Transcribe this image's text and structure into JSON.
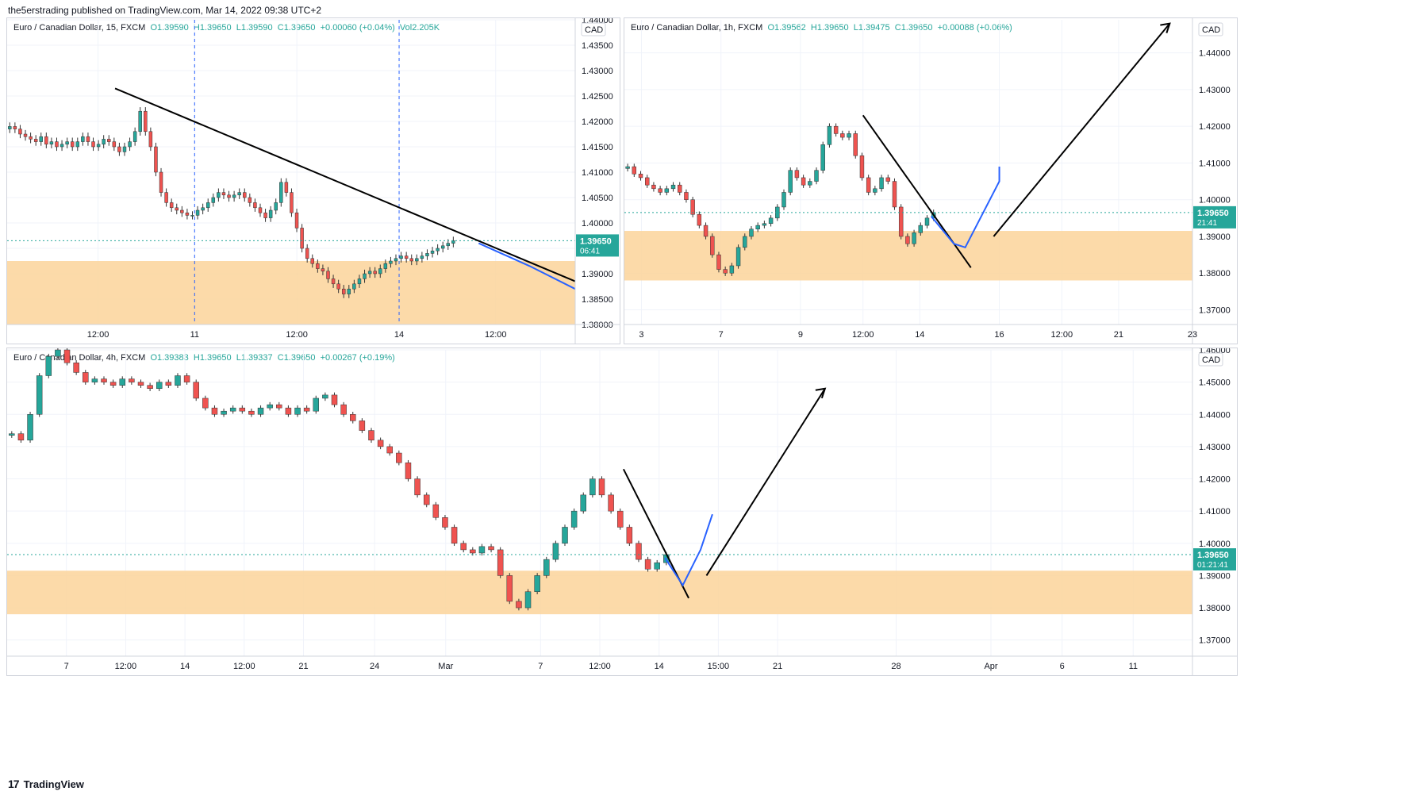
{
  "header": {
    "publisher": "the5erstrading published on TradingView.com, Mar 14, 2022 09:38 UTC+2"
  },
  "footer": {
    "brand": "TradingView",
    "logo_icon": "tradingview-logo-icon"
  },
  "colors": {
    "up": "#26a69a",
    "down": "#ef5350",
    "zone": "#fbd39a",
    "price_badge": "#26a69a",
    "trend": "#000000",
    "path": "#2962ff",
    "grid": "#f0f3fa"
  },
  "chart_data": [
    {
      "id": "p15",
      "type": "candlestick",
      "legend": {
        "symbol": "Euro / Canadian Dollar, 15, FXCM",
        "o": "O1.39590",
        "h": "H1.39650",
        "l": "L1.39590",
        "c": "C1.39650",
        "chg": "+0.00060 (+0.04%)",
        "vol": "Vol2.205K"
      },
      "currency": "CAD",
      "ylim": [
        1.38,
        1.44
      ],
      "y_ticks": [
        "1.38000",
        "1.38500",
        "1.39000",
        "1.39500",
        "1.40000",
        "1.40500",
        "1.41000",
        "1.41500",
        "1.42000",
        "1.42500",
        "1.43000",
        "1.43500",
        "1.44000"
      ],
      "x_ticks": [
        "12:00",
        "11",
        "12:00",
        "14",
        "12:00"
      ],
      "x_tick_pos": [
        0.16,
        0.33,
        0.51,
        0.69,
        0.86
      ],
      "price": "1.39650",
      "countdown": "06:41",
      "zone": [
        1.38,
        1.3925
      ],
      "vlines": [
        0.33,
        0.69
      ],
      "closes": [
        1.419,
        1.4185,
        1.4175,
        1.417,
        1.4165,
        1.416,
        1.417,
        1.4155,
        1.416,
        1.415,
        1.4155,
        1.416,
        1.415,
        1.416,
        1.417,
        1.416,
        1.415,
        1.4155,
        1.4165,
        1.416,
        1.415,
        1.414,
        1.415,
        1.416,
        1.418,
        1.422,
        1.418,
        1.415,
        1.41,
        1.406,
        1.404,
        1.403,
        1.4025,
        1.402,
        1.4015,
        1.4015,
        1.4025,
        1.403,
        1.404,
        1.405,
        1.406,
        1.4055,
        1.405,
        1.4055,
        1.406,
        1.405,
        1.404,
        1.403,
        1.402,
        1.401,
        1.4025,
        1.404,
        1.408,
        1.406,
        1.402,
        1.399,
        1.395,
        1.393,
        1.392,
        1.391,
        1.3905,
        1.389,
        1.388,
        1.387,
        1.386,
        1.387,
        1.388,
        1.389,
        1.39,
        1.3905,
        1.39,
        1.391,
        1.392,
        1.3925,
        1.393,
        1.3935,
        1.393,
        1.3925,
        1.393,
        1.3935,
        1.394,
        1.3945,
        1.395,
        1.3955,
        1.396,
        1.3965
      ],
      "lines": [
        {
          "color": "trend",
          "pts": [
            [
              0.19,
              1.4265
            ],
            [
              1.0,
              1.3885
            ]
          ]
        },
        {
          "color": "path",
          "pts": [
            [
              0.83,
              1.396
            ],
            [
              0.92,
              1.3915
            ],
            [
              1.0,
              1.387
            ]
          ]
        }
      ]
    },
    {
      "id": "p1h",
      "type": "candlestick",
      "legend": {
        "symbol": "Euro / Canadian Dollar, 1h, FXCM",
        "o": "O1.39562",
        "h": "H1.39650",
        "l": "L1.39475",
        "c": "C1.39650",
        "chg": "+0.00088 (+0.06%)",
        "vol": ""
      },
      "currency": "CAD",
      "ylim": [
        1.366,
        1.449
      ],
      "y_ticks": [
        "1.37000",
        "1.38000",
        "1.39000",
        "1.40000",
        "1.41000",
        "1.42000",
        "1.43000",
        "1.44000"
      ],
      "x_ticks": [
        "3",
        "7",
        "9",
        "12:00",
        "14",
        "16",
        "12:00",
        "21",
        "23"
      ],
      "x_tick_pos": [
        0.03,
        0.17,
        0.31,
        0.42,
        0.52,
        0.66,
        0.77,
        0.87,
        1.0
      ],
      "price": "1.39650",
      "countdown": "21:41",
      "zone": [
        1.378,
        1.3915
      ],
      "vlines": [],
      "closes": [
        1.409,
        1.407,
        1.406,
        1.404,
        1.403,
        1.402,
        1.403,
        1.404,
        1.402,
        1.4,
        1.396,
        1.393,
        1.39,
        1.385,
        1.381,
        1.38,
        1.382,
        1.387,
        1.39,
        1.392,
        1.393,
        1.3935,
        1.395,
        1.398,
        1.402,
        1.408,
        1.406,
        1.404,
        1.405,
        1.408,
        1.415,
        1.42,
        1.418,
        1.417,
        1.418,
        1.412,
        1.406,
        1.402,
        1.403,
        1.406,
        1.405,
        1.398,
        1.39,
        1.388,
        1.391,
        1.393,
        1.395,
        1.3965
      ],
      "closes_span": [
        0.0,
        0.55
      ],
      "lines": [
        {
          "color": "trend",
          "pts": [
            [
              0.42,
              1.423
            ],
            [
              0.61,
              1.3815
            ]
          ]
        },
        {
          "color": "trend",
          "pts": [
            [
              0.65,
              1.39
            ],
            [
              0.96,
              1.448
            ]
          ]
        },
        {
          "color": "path",
          "pts": [
            [
              0.54,
              1.3955
            ],
            [
              0.58,
              1.388
            ],
            [
              0.6,
              1.387
            ],
            [
              0.63,
              1.396
            ],
            [
              0.66,
              1.405
            ],
            [
              0.66,
              1.409
            ]
          ]
        }
      ]
    },
    {
      "id": "p4h",
      "type": "candlestick",
      "legend": {
        "symbol": "Euro / Canadian Dollar, 4h, FXCM",
        "o": "O1.39383",
        "h": "H1.39650",
        "l": "L1.39337",
        "c": "C1.39650",
        "chg": "+0.00267 (+0.19%)",
        "vol": ""
      },
      "currency": "CAD",
      "ylim": [
        1.365,
        1.46
      ],
      "y_ticks": [
        "1.37000",
        "1.38000",
        "1.39000",
        "1.40000",
        "1.41000",
        "1.42000",
        "1.43000",
        "1.44000",
        "1.45000",
        "1.46000"
      ],
      "x_ticks": [
        "7",
        "12:00",
        "14",
        "12:00",
        "21",
        "24",
        "Mar",
        "7",
        "12:00",
        "14",
        "15:00",
        "21",
        "28",
        "Apr",
        "6",
        "11"
      ],
      "x_tick_pos": [
        0.05,
        0.1,
        0.15,
        0.2,
        0.25,
        0.31,
        0.37,
        0.45,
        0.5,
        0.55,
        0.6,
        0.65,
        0.75,
        0.83,
        0.89,
        0.95
      ],
      "price": "1.39650",
      "countdown": "01:21:41",
      "zone": [
        1.378,
        1.3915
      ],
      "vlines": [],
      "closes": [
        1.434,
        1.432,
        1.44,
        1.452,
        1.458,
        1.46,
        1.456,
        1.453,
        1.45,
        1.451,
        1.45,
        1.449,
        1.451,
        1.45,
        1.449,
        1.448,
        1.45,
        1.449,
        1.452,
        1.45,
        1.445,
        1.442,
        1.44,
        1.441,
        1.442,
        1.441,
        1.44,
        1.442,
        1.443,
        1.442,
        1.44,
        1.442,
        1.441,
        1.445,
        1.446,
        1.443,
        1.44,
        1.438,
        1.435,
        1.432,
        1.43,
        1.428,
        1.425,
        1.42,
        1.415,
        1.412,
        1.408,
        1.405,
        1.4,
        1.398,
        1.397,
        1.399,
        1.398,
        1.39,
        1.382,
        1.38,
        1.385,
        1.39,
        1.395,
        1.4,
        1.405,
        1.41,
        1.415,
        1.42,
        1.415,
        1.41,
        1.405,
        1.4,
        1.395,
        1.392,
        1.394,
        1.3965
      ],
      "closes_span": [
        0.0,
        0.56
      ],
      "lines": [
        {
          "color": "trend",
          "pts": [
            [
              0.52,
              1.423
            ],
            [
              0.575,
              1.383
            ]
          ]
        },
        {
          "color": "trend",
          "pts": [
            [
              0.59,
              1.39
            ],
            [
              0.69,
              1.448
            ]
          ]
        },
        {
          "color": "path",
          "pts": [
            [
              0.555,
              1.3955
            ],
            [
              0.57,
              1.387
            ],
            [
              0.585,
              1.398
            ],
            [
              0.595,
              1.409
            ]
          ]
        }
      ]
    }
  ]
}
